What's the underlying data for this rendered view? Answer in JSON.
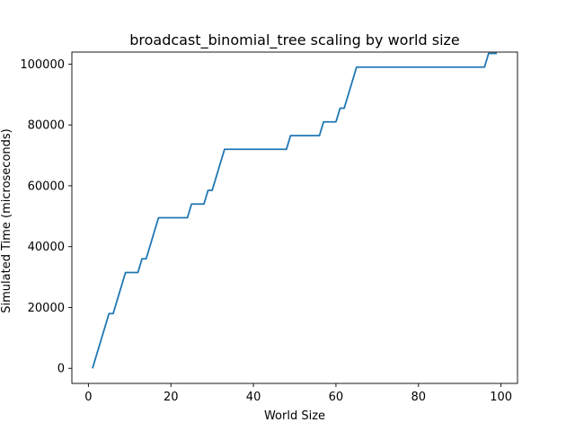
{
  "chart_data": {
    "type": "line",
    "title": "broadcast_binomial_tree scaling by world size",
    "xlabel": "World Size",
    "ylabel": "Simulated Time (microseconds)",
    "xlim": [
      -4.0,
      104.0
    ],
    "ylim": [
      -4950,
      103950
    ],
    "xticks": [
      0,
      20,
      40,
      60,
      80,
      100
    ],
    "yticks": [
      0,
      20000,
      40000,
      60000,
      80000,
      100000
    ],
    "grid": false,
    "line_color": "#1f77b4",
    "series": [
      {
        "x": [
          1,
          5,
          6,
          9,
          12,
          13,
          14,
          17,
          24,
          25,
          28,
          29,
          30,
          33,
          48,
          49,
          56,
          57,
          60,
          61,
          62,
          65,
          96,
          97,
          99
        ],
        "values": [
          0,
          18000,
          18000,
          31500,
          31500,
          36000,
          36000,
          49500,
          49500,
          54000,
          54000,
          58500,
          58500,
          72000,
          72000,
          76500,
          76500,
          81000,
          81000,
          85500,
          85500,
          99000,
          99000,
          103500,
          103500
        ]
      }
    ]
  }
}
